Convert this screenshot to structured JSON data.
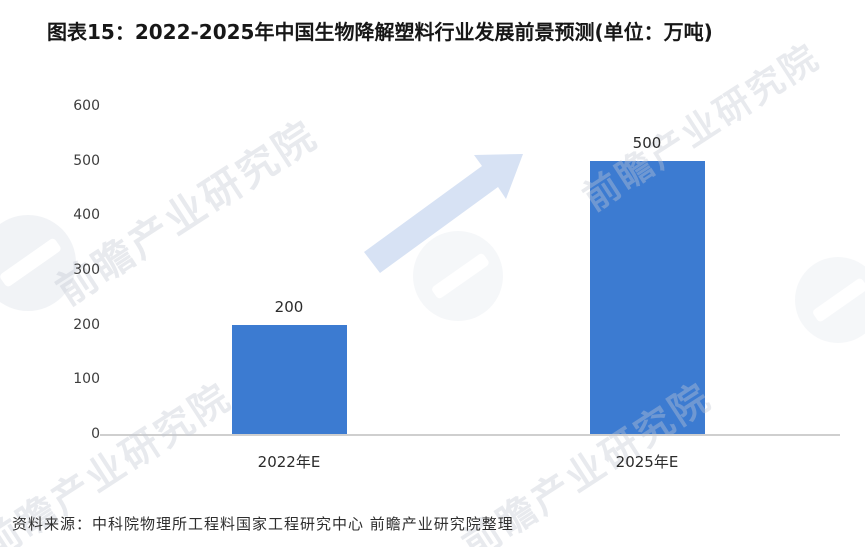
{
  "title": "图表15：2022-2025年中国生物降解塑料行业发展前景预测(单位：万吨)",
  "source_note": "资料来源：中科院物理所工程料国家工程研究中心 前瞻产业研究院整理",
  "watermark": {
    "text": "前瞻产业研究院"
  },
  "colors": {
    "bar": "#3c7bd1",
    "arrow": "#d7e2f4",
    "axis_line": "#cfcfcf",
    "watermark_text": "#c3c9d4",
    "title_text": "#171717"
  },
  "chart_data": {
    "type": "bar",
    "figure_label": "图表15",
    "title": "2022-2025年中国生物降解塑料行业发展前景预测",
    "unit": "万吨",
    "categories": [
      "2022年E",
      "2025年E"
    ],
    "values": [
      200,
      500
    ],
    "xlabel": "",
    "ylabel": "",
    "ylim": [
      0,
      600
    ],
    "yticks": [
      0,
      100,
      200,
      300,
      400,
      500,
      600
    ],
    "grid": false,
    "legend": null,
    "annotations": [
      {
        "type": "arrow",
        "meaning": "growth-trend",
        "direction": "up-right"
      }
    ]
  }
}
